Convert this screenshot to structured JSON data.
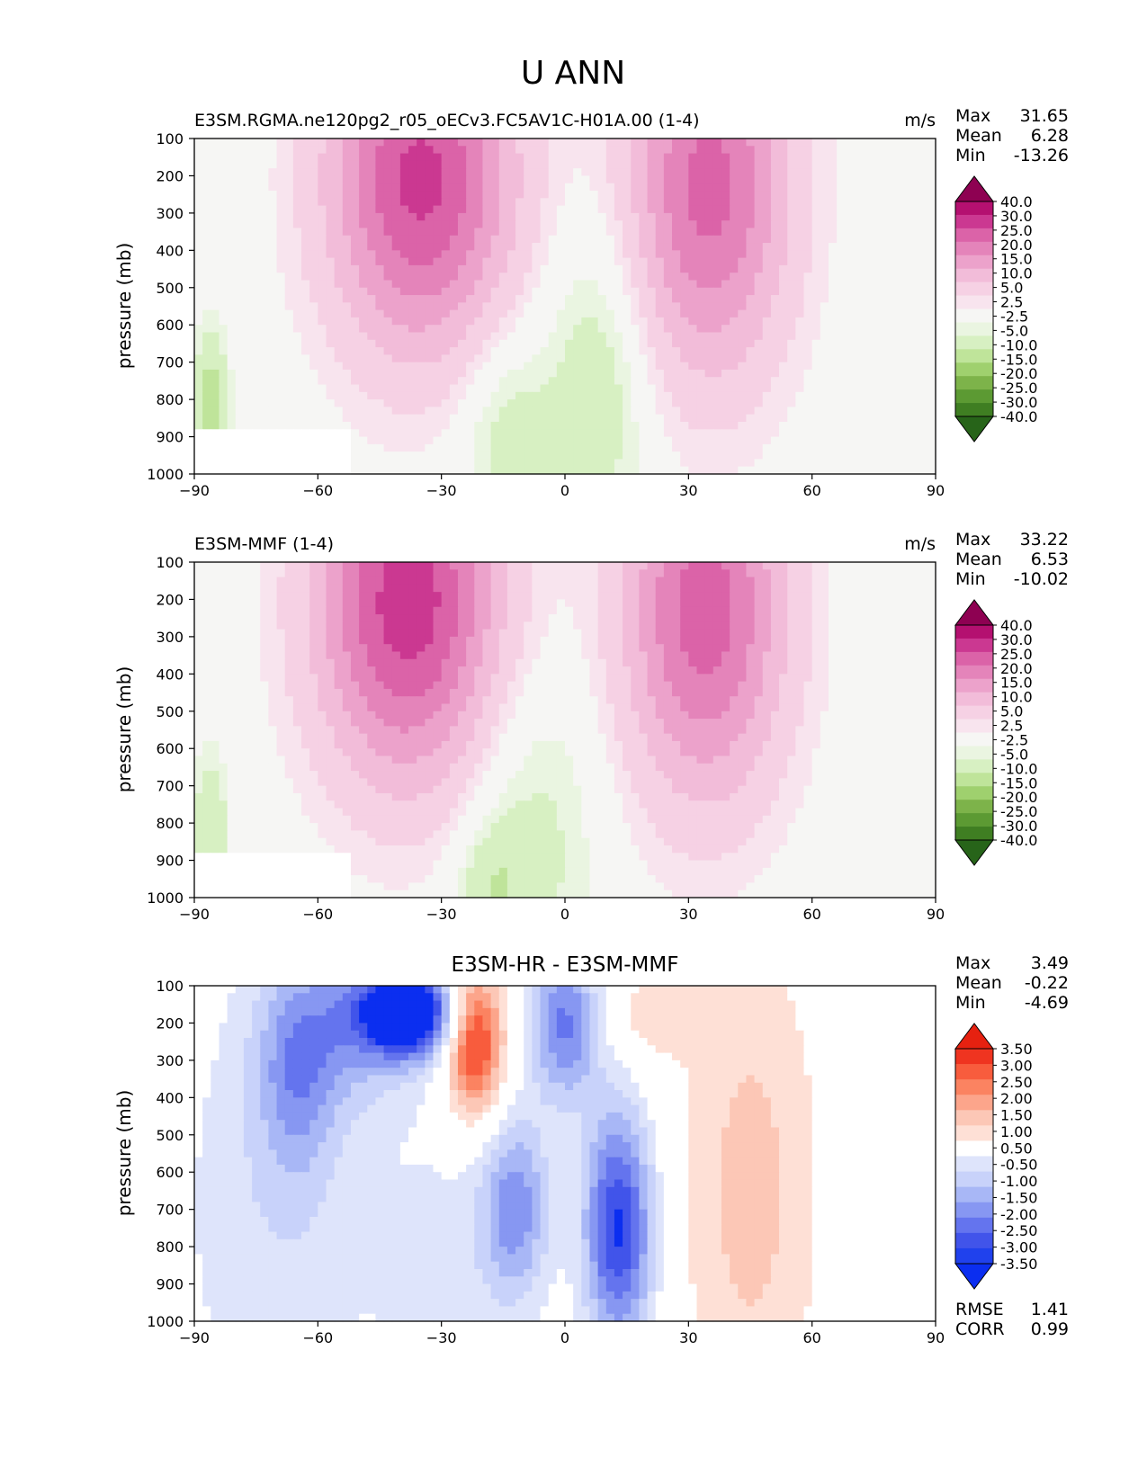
{
  "figure_title": "U ANN",
  "colors": {
    "pos_scale": [
      "#f6f6f4",
      "#f8e4ee",
      "#f6d1e4",
      "#f2bcd9",
      "#eca2cb",
      "#e484ba",
      "#db63a8",
      "#cb3891",
      "#b41070",
      "#8e0152"
    ],
    "neg_scale": [
      "#f6f6f4",
      "#eaf5e1",
      "#d7f0c2",
      "#bfe49a",
      "#9fd06e",
      "#7db34a",
      "#5c9a33",
      "#3f7e22",
      "#276419"
    ],
    "diff_pos": [
      "#ffffff",
      "#fee0d6",
      "#fcc7b6",
      "#fca58b",
      "#fb8361",
      "#f85c3d",
      "#ef3420",
      "#e62110"
    ],
    "diff_neg": [
      "#ffffff",
      "#dee4fb",
      "#c8d2fa",
      "#a8b7f6",
      "#8797f2",
      "#6474ee",
      "#4154ea",
      "#2041ed",
      "#0b2ef0"
    ]
  },
  "chart_data": [
    {
      "type": "contour",
      "title": "E3SM.RGMA.ne120pg2_r05_oECv3.FC5AV1C-H01A.00 (1-4)",
      "units": "m/s",
      "xlabel": "",
      "ylabel": "pressure (mb)",
      "x_ticks": [
        "−90",
        "−60",
        "−30",
        "0",
        "30",
        "60",
        "90"
      ],
      "y_ticks": [
        "100",
        "200",
        "300",
        "400",
        "500",
        "600",
        "700",
        "800",
        "900",
        "1000"
      ],
      "xlim": [
        -90,
        90
      ],
      "ylim": [
        1000,
        100
      ],
      "stats": {
        "max_label": "Max",
        "max": "31.65",
        "mean_label": "Mean",
        "mean": "6.28",
        "min_label": "Min",
        "min": "-13.26"
      },
      "colorbar_labels": [
        "40.0",
        "30.0",
        "25.0",
        "20.0",
        "15.0",
        "10.0",
        "5.0",
        "2.5",
        "-2.5",
        "-5.0",
        "-10.0",
        "-15.0",
        "-20.0",
        "-25.0",
        "-30.0",
        "-40.0"
      ],
      "jets": [
        {
          "lat": -35,
          "p": 210,
          "peak": 31.65,
          "wlat": 16,
          "wp": 330
        },
        {
          "lat": 35,
          "p": 230,
          "peak": 27,
          "wlat": 14,
          "wp": 360
        }
      ],
      "troughs": [
        {
          "lat": 8,
          "p": 750,
          "peak": -9,
          "wlat": 9,
          "wp": 300
        },
        {
          "lat": -14,
          "p": 900,
          "peak": -8,
          "wlat": 8,
          "wp": 200
        },
        {
          "lat": -86,
          "p": 820,
          "peak": -13.26,
          "wlat": 3,
          "wp": 150
        }
      ],
      "mask": {
        "lat_from": -90,
        "lat_to": -52,
        "p_from": 870
      }
    },
    {
      "type": "contour",
      "title": "E3SM-MMF (1-4)",
      "units": "m/s",
      "xlabel": "",
      "ylabel": "pressure (mb)",
      "x_ticks": [
        "−90",
        "−60",
        "−30",
        "0",
        "30",
        "60",
        "90"
      ],
      "y_ticks": [
        "100",
        "200",
        "300",
        "400",
        "500",
        "600",
        "700",
        "800",
        "900",
        "1000"
      ],
      "xlim": [
        -90,
        90
      ],
      "ylim": [
        1000,
        100
      ],
      "stats": {
        "max_label": "Max",
        "max": "33.22",
        "mean_label": "Mean",
        "mean": "6.53",
        "min_label": "Min",
        "min": "-10.02"
      },
      "colorbar_labels": [
        "40.0",
        "30.0",
        "25.0",
        "20.0",
        "15.0",
        "10.0",
        "5.0",
        "2.5",
        "-2.5",
        "-5.0",
        "-10.0",
        "-15.0",
        "-20.0",
        "-25.0",
        "-30.0",
        "-40.0"
      ],
      "jets": [
        {
          "lat": -38,
          "p": 210,
          "peak": 33.22,
          "wlat": 16,
          "wp": 340
        },
        {
          "lat": 34,
          "p": 230,
          "peak": 28,
          "wlat": 14,
          "wp": 360
        }
      ],
      "troughs": [
        {
          "lat": -8,
          "p": 820,
          "peak": -7,
          "wlat": 11,
          "wp": 330
        },
        {
          "lat": -18,
          "p": 960,
          "peak": -7,
          "wlat": 6,
          "wp": 120
        },
        {
          "lat": -86,
          "p": 820,
          "peak": -10.02,
          "wlat": 3,
          "wp": 150
        }
      ],
      "mask": {
        "lat_from": -90,
        "lat_to": -52,
        "p_from": 870
      }
    },
    {
      "type": "contour",
      "title": "E3SM-HR - E3SM-MMF",
      "units": "",
      "xlabel": "",
      "ylabel": "pressure (mb)",
      "x_ticks": [
        "−90",
        "−60",
        "−30",
        "0",
        "30",
        "60",
        "90"
      ],
      "y_ticks": [
        "100",
        "200",
        "300",
        "400",
        "500",
        "600",
        "700",
        "800",
        "900",
        "1000"
      ],
      "xlim": [
        -90,
        90
      ],
      "ylim": [
        1000,
        100
      ],
      "stats": {
        "max_label": "Max",
        "max": "3.49",
        "mean_label": "Mean",
        "mean": "-0.22",
        "min_label": "Min",
        "min": "-4.69"
      },
      "colorbar_labels": [
        "3.50",
        "3.00",
        "2.50",
        "2.00",
        "1.50",
        "1.00",
        "0.50",
        "-0.50",
        "-1.00",
        "-1.50",
        "-2.00",
        "-2.50",
        "-3.00",
        "-3.50"
      ],
      "metrics": {
        "rmse_label": "RMSE",
        "rmse": "1.41",
        "corr_label": "CORR",
        "corr": "0.99"
      },
      "blobs": [
        {
          "lat": -38,
          "p": 170,
          "amp": -4.69,
          "wlat": 8,
          "wp": 80
        },
        {
          "lat": -65,
          "p": 330,
          "amp": -1.6,
          "wlat": 7,
          "wp": 200
        },
        {
          "lat": -50,
          "p": 200,
          "amp": -1.5,
          "wlat": 12,
          "wp": 150
        },
        {
          "lat": -22,
          "p": 250,
          "amp": 3.49,
          "wlat": 5,
          "wp": 140
        },
        {
          "lat": 0,
          "p": 200,
          "amp": -2.6,
          "wlat": 6,
          "wp": 150
        },
        {
          "lat": 13,
          "p": 750,
          "amp": -3.6,
          "wlat": 6,
          "wp": 230
        },
        {
          "lat": -12,
          "p": 700,
          "amp": -2.3,
          "wlat": 6,
          "wp": 180
        },
        {
          "lat": 45,
          "p": 650,
          "amp": 1.2,
          "wlat": 12,
          "wp": 500
        },
        {
          "lat": 20,
          "p": 180,
          "amp": 0.8,
          "wlat": 8,
          "wp": 90
        },
        {
          "lat": -70,
          "p": 700,
          "amp": -0.9,
          "wlat": 18,
          "wp": 500
        },
        {
          "lat": -30,
          "p": 900,
          "amp": -0.7,
          "wlat": 10,
          "wp": 300
        }
      ]
    }
  ]
}
